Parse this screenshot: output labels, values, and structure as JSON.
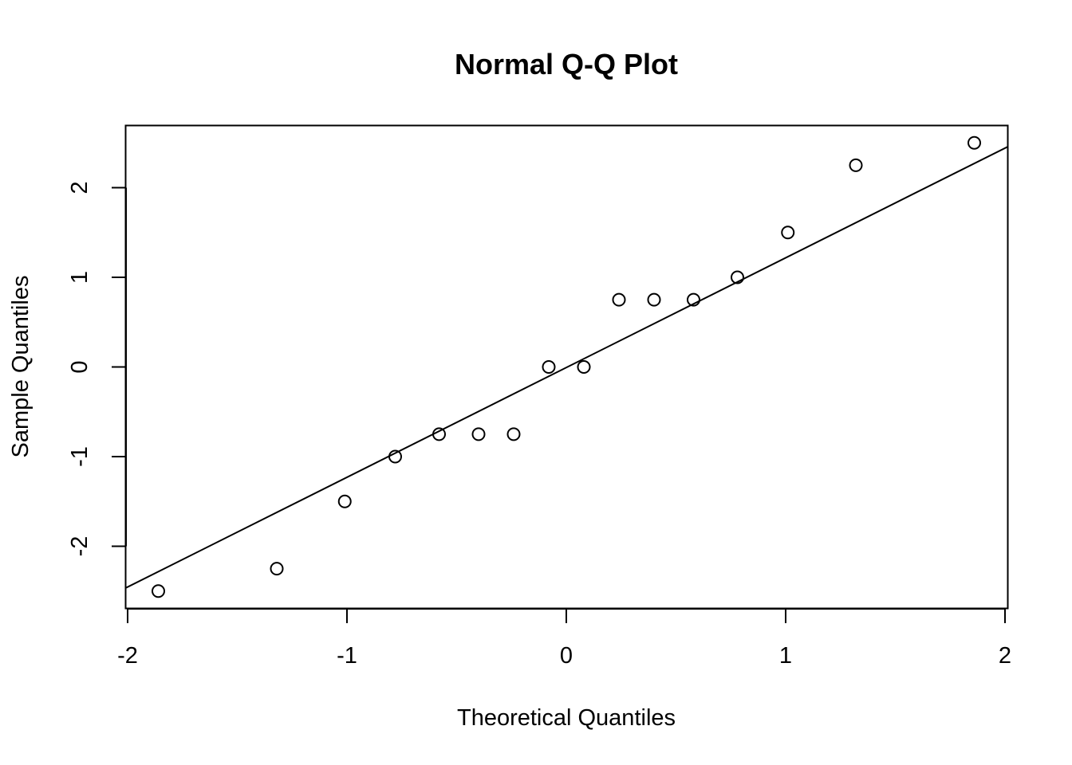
{
  "chart_data": {
    "type": "scatter",
    "title": "Normal Q-Q Plot",
    "xlabel": "Theoretical Quantiles",
    "ylabel": "Sample Quantiles",
    "xlim": [
      -1.86,
      1.86
    ],
    "ylim": [
      -2.5,
      2.5
    ],
    "x_ticks": [
      -2,
      -1,
      0,
      1,
      2
    ],
    "x_tick_labels": [
      "-2",
      "-1",
      "0",
      "1",
      "2"
    ],
    "y_ticks": [
      -2,
      -1,
      0,
      1,
      2
    ],
    "y_tick_labels": [
      "-2",
      "-1",
      "0",
      "1",
      "2"
    ],
    "grid": false,
    "legend": "none",
    "points": [
      {
        "x": -1.86,
        "y": -2.5
      },
      {
        "x": -1.32,
        "y": -2.25
      },
      {
        "x": -1.01,
        "y": -1.5
      },
      {
        "x": -0.78,
        "y": -1.0
      },
      {
        "x": -0.58,
        "y": -0.75
      },
      {
        "x": -0.4,
        "y": -0.75
      },
      {
        "x": -0.24,
        "y": -0.75
      },
      {
        "x": -0.08,
        "y": 0.0
      },
      {
        "x": 0.08,
        "y": 0.0
      },
      {
        "x": 0.24,
        "y": 0.75
      },
      {
        "x": 0.4,
        "y": 0.75
      },
      {
        "x": 0.58,
        "y": 0.75
      },
      {
        "x": 0.78,
        "y": 1.0
      },
      {
        "x": 1.01,
        "y": 1.5
      },
      {
        "x": 1.32,
        "y": 2.25
      },
      {
        "x": 1.86,
        "y": 2.5
      }
    ],
    "reference_line": {
      "intercept": -0.0065,
      "slope": 1.224
    }
  }
}
